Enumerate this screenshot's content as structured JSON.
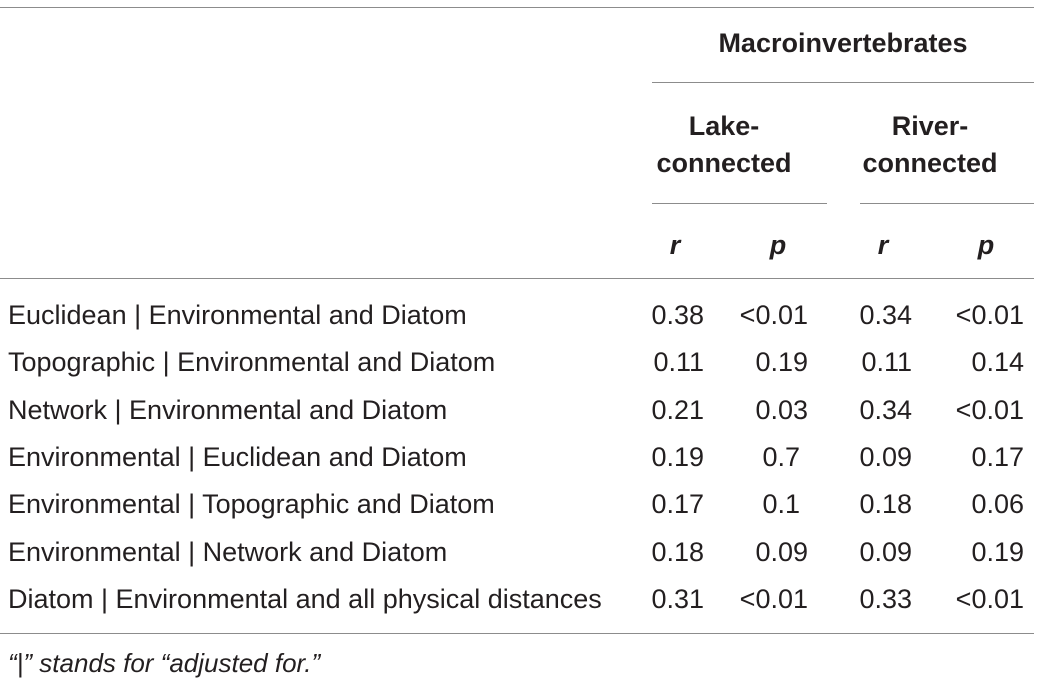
{
  "table": {
    "group_header": "Macroinvertebrates",
    "subgroups": [
      {
        "line1": "Lake-",
        "line2": "connected"
      },
      {
        "line1": "River-",
        "line2": "connected"
      }
    ],
    "stat_headers": [
      "r",
      "p",
      "r",
      "p"
    ],
    "rows": [
      {
        "label": "Euclidean | Environmental and Diatom",
        "values": [
          "0.38",
          "<0.01",
          "0.34",
          "<0.01"
        ]
      },
      {
        "label": "Topographic | Environmental and Diatom",
        "values": [
          "0.11",
          "0.19",
          "0.11",
          "0.14"
        ]
      },
      {
        "label": "Network | Environmental and Diatom",
        "values": [
          "0.21",
          "0.03",
          "0.34",
          "<0.01"
        ]
      },
      {
        "label": "Environmental | Euclidean and Diatom",
        "values": [
          "0.19",
          "0.7",
          "0.09",
          "0.17"
        ]
      },
      {
        "label": "Environmental | Topographic and Diatom",
        "values": [
          "0.17",
          "0.1",
          "0.18",
          "0.06"
        ]
      },
      {
        "label": "Environmental | Network and Diatom",
        "values": [
          "0.18",
          "0.09",
          "0.09",
          "0.19"
        ]
      },
      {
        "label": "Diatom | Environmental and all physical distances",
        "values": [
          "0.31",
          "<0.01",
          "0.33",
          "<0.01"
        ]
      }
    ]
  },
  "footnote": "“|” stands for “adjusted for.”"
}
